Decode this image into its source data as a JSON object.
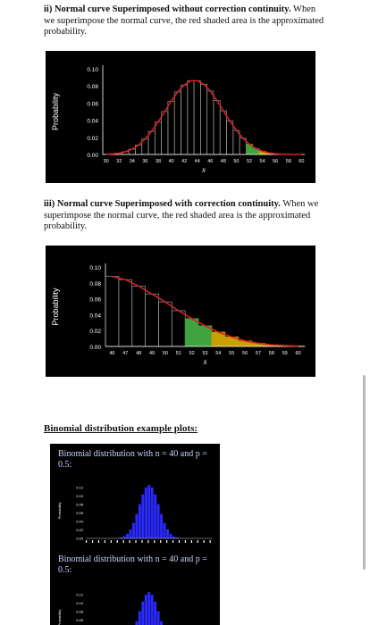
{
  "section_ii": {
    "bold": "ii) Normal curve Superimposed without correction continuity.",
    "rest": " When we superimpose the normal curve, the red shaded area is the approximated probability."
  },
  "section_iii": {
    "bold": "iii) Normal curve Superimposed with correction continuity.",
    "rest": " When we superimpose the normal curve, the red shaded area is the approximated probability."
  },
  "examples_heading": "Binomial distribution example plots:",
  "binomial_caption_1": "Binomial distribution with n = 40 and p = 0.5:",
  "binomial_caption_2": "Binomial distribution with n = 40 and p = 0.5:",
  "colors": {
    "curve": "#d62020",
    "bar_grey": "#9a9a9a",
    "bar_green": "#3fa33f",
    "bar_yellow": "#c8a000",
    "binomial": "#2a2aff"
  },
  "chart_data": [
    {
      "type": "bar",
      "title": "",
      "xlabel": "x",
      "ylabel": "Probability",
      "ylim": [
        0,
        0.1
      ],
      "yticks": [
        "0.00",
        "0.02",
        "0.04",
        "0.06",
        "0.08",
        "0.10"
      ],
      "xticks": [
        "30",
        "32",
        "34",
        "36",
        "38",
        "40",
        "42",
        "44",
        "46",
        "48",
        "50",
        "52",
        "54",
        "56",
        "58",
        "60"
      ],
      "categories": [
        30,
        31,
        32,
        33,
        34,
        35,
        36,
        37,
        38,
        39,
        40,
        41,
        42,
        43,
        44,
        45,
        46,
        47,
        48,
        49,
        50,
        51,
        52,
        53,
        54,
        55,
        56,
        57,
        58,
        59,
        60
      ],
      "values": [
        0.0003,
        0.0007,
        0.0016,
        0.0033,
        0.0062,
        0.011,
        0.018,
        0.027,
        0.038,
        0.05,
        0.062,
        0.073,
        0.081,
        0.086,
        0.086,
        0.082,
        0.074,
        0.063,
        0.051,
        0.039,
        0.028,
        0.019,
        0.012,
        0.007,
        0.0037,
        0.0018,
        0.0008,
        0.0003,
        0.0001,
        0.0,
        0.0
      ],
      "highlight_from": 52,
      "curve": "normal overlay"
    },
    {
      "type": "bar",
      "title": "",
      "xlabel": "x",
      "ylabel": "Probability",
      "ylim": [
        0,
        0.1
      ],
      "yticks": [
        "0.00",
        "0.02",
        "0.04",
        "0.06",
        "0.08",
        "0.10"
      ],
      "xticks": [
        "46",
        "47",
        "48",
        "49",
        "50",
        "51",
        "52",
        "53",
        "54",
        "55",
        "56",
        "57",
        "58",
        "59",
        "60"
      ],
      "categories": [
        46,
        47,
        48,
        49,
        50,
        51,
        52,
        53,
        54,
        55,
        56,
        57,
        58,
        59,
        60
      ],
      "values": [
        0.088,
        0.084,
        0.076,
        0.066,
        0.056,
        0.045,
        0.035,
        0.026,
        0.018,
        0.012,
        0.007,
        0.004,
        0.002,
        0.001,
        0.0004
      ],
      "highlight_from": 52,
      "curve": "normal overlay"
    },
    {
      "type": "bar",
      "title": "",
      "ylabel": "Probability",
      "yticks": [
        "0.12",
        "0.10",
        "0.08",
        "0.06",
        "0.04",
        "0.02",
        "0.00"
      ],
      "n": 40,
      "p": 0.5
    }
  ]
}
